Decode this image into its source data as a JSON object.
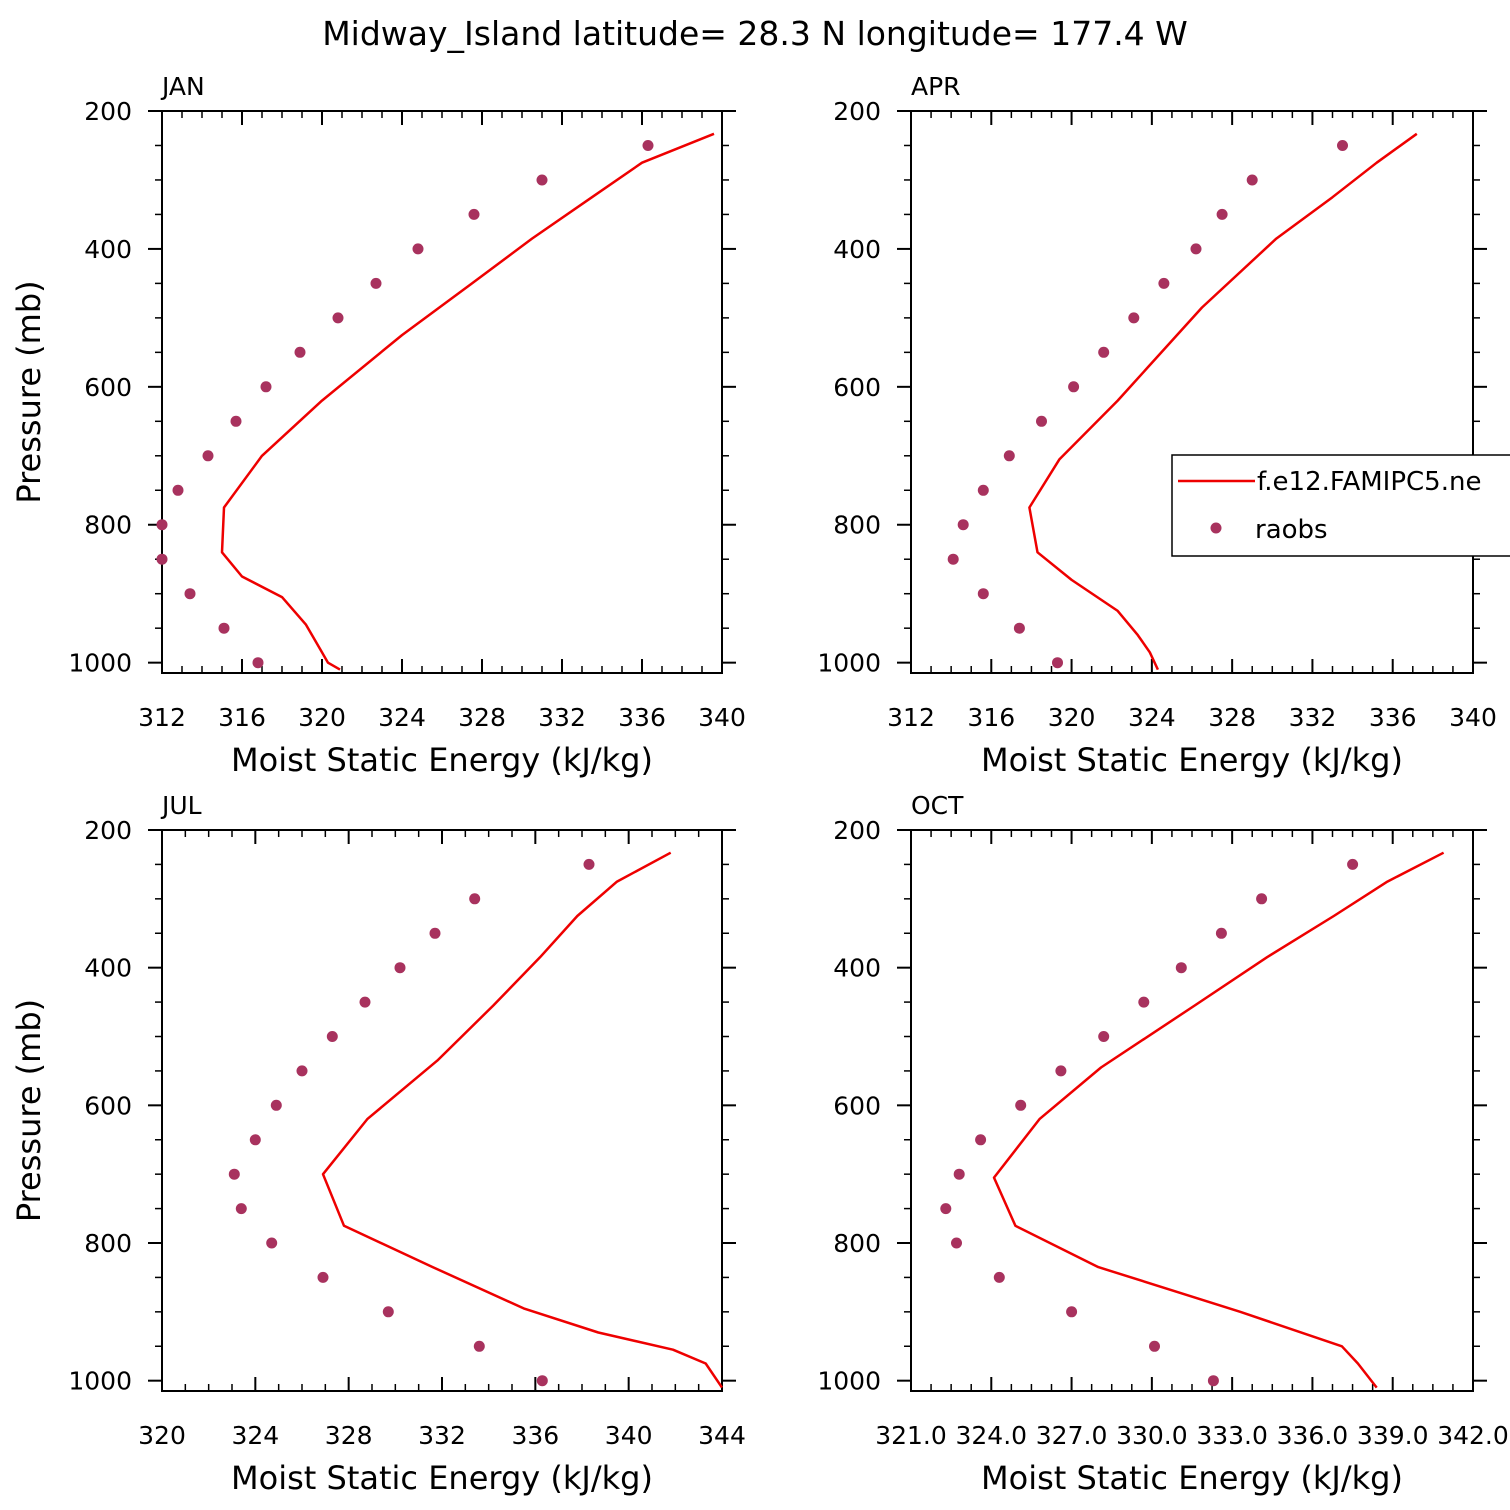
{
  "title": "Midway_Island  latitude= 28.3 N longitude= 177.4 W",
  "colors": {
    "model_line": "#ee0000",
    "obs_marker": "#a8325e",
    "axis": "#000000"
  },
  "legend": {
    "model_label": "f.e12.FAMIPC5.ne",
    "obs_label": "raobs",
    "placement": "right-middle of APR panel (clipped at figure edge)"
  },
  "chart_data": [
    {
      "type": "line",
      "panel": "JAN",
      "title": "JAN",
      "xlabel": "Moist Static Energy (kJ/kg)",
      "ylabel": "Pressure (mb)",
      "xlim": [
        312,
        340
      ],
      "ylim": [
        1015,
        200
      ],
      "x_ticks": [
        "312",
        "316",
        "320",
        "324",
        "328",
        "332",
        "336",
        "340"
      ],
      "y_ticks": [
        "200",
        "400",
        "600",
        "800",
        "1000"
      ],
      "series": [
        {
          "name": "f.e12.FAMIPC5.ne",
          "kind": "line",
          "x": [
            339.6,
            336,
            333.5,
            330.5,
            327.5,
            324,
            320,
            317,
            315.1,
            315,
            316,
            318,
            319.2,
            319.9,
            320.3,
            320.9
          ],
          "y": [
            233,
            275,
            325,
            385,
            450,
            525,
            620,
            700,
            775,
            840,
            875,
            905,
            945,
            980,
            1000,
            1010
          ]
        },
        {
          "name": "raobs",
          "kind": "scatter",
          "x": [
            336.3,
            331,
            327.6,
            324.8,
            322.7,
            320.8,
            318.9,
            317.2,
            315.7,
            314.3,
            312.8,
            312,
            312,
            313.4,
            315.1,
            316.8
          ],
          "y": [
            250,
            300,
            350,
            400,
            450,
            500,
            550,
            600,
            650,
            700,
            750,
            800,
            850,
            900,
            950,
            1000
          ]
        }
      ]
    },
    {
      "type": "line",
      "panel": "APR",
      "title": "APR",
      "xlabel": "Moist Static Energy (kJ/kg)",
      "ylabel": "",
      "xlim": [
        312,
        340
      ],
      "ylim": [
        1015,
        200
      ],
      "x_ticks": [
        "312",
        "316",
        "320",
        "324",
        "328",
        "332",
        "336",
        "340"
      ],
      "y_ticks": [
        "200",
        "400",
        "600",
        "800",
        "1000"
      ],
      "series": [
        {
          "name": "f.e12.FAMIPC5.ne",
          "kind": "line",
          "x": [
            337.2,
            335.2,
            333,
            330.2,
            326.5,
            322.3,
            319.4,
            317.9,
            318.3,
            320,
            322.3,
            323.3,
            323.9,
            324.3
          ],
          "y": [
            233,
            275,
            325,
            385,
            485,
            620,
            705,
            775,
            840,
            880,
            925,
            960,
            985,
            1010
          ]
        },
        {
          "name": "raobs",
          "kind": "scatter",
          "x": [
            333.5,
            329,
            327.5,
            326.2,
            324.6,
            323.1,
            321.6,
            320.1,
            318.5,
            316.9,
            315.6,
            314.6,
            314.1,
            315.6,
            317.4,
            319.3
          ],
          "y": [
            250,
            300,
            350,
            400,
            450,
            500,
            550,
            600,
            650,
            700,
            750,
            800,
            850,
            900,
            950,
            1000
          ]
        }
      ]
    },
    {
      "type": "line",
      "panel": "JUL",
      "title": "JUL",
      "xlabel": "Moist Static Energy (kJ/kg)",
      "ylabel": "Pressure (mb)",
      "xlim": [
        320,
        344
      ],
      "ylim": [
        1015,
        200
      ],
      "x_ticks": [
        "320",
        "324",
        "328",
        "332",
        "336",
        "340",
        "344"
      ],
      "y_ticks": [
        "200",
        "400",
        "600",
        "800",
        "1000"
      ],
      "series": [
        {
          "name": "f.e12.FAMIPC5.ne",
          "kind": "line",
          "x": [
            341.8,
            339.5,
            337.8,
            336.2,
            334.2,
            331.8,
            328.8,
            326.9,
            327.8,
            331.6,
            335.5,
            338.7,
            341.9,
            343.3,
            344
          ],
          "y": [
            233,
            275,
            325,
            385,
            455,
            535,
            620,
            700,
            775,
            835,
            895,
            930,
            955,
            975,
            1010
          ]
        },
        {
          "name": "raobs",
          "kind": "scatter",
          "x": [
            338.3,
            333.4,
            331.7,
            330.2,
            328.7,
            327.3,
            326,
            324.9,
            324,
            323.1,
            323.4,
            324.7,
            326.9,
            329.7,
            333.6,
            336.3
          ],
          "y": [
            250,
            300,
            350,
            400,
            450,
            500,
            550,
            600,
            650,
            700,
            750,
            800,
            850,
            900,
            950,
            1000
          ]
        }
      ]
    },
    {
      "type": "line",
      "panel": "OCT",
      "title": "OCT",
      "xlabel": "Moist Static Energy (kJ/kg)",
      "ylabel": "",
      "xlim": [
        321,
        342
      ],
      "ylim": [
        1015,
        200
      ],
      "x_ticks": [
        "321.0",
        "324.0",
        "327.0",
        "330.0",
        "333.0",
        "336.0",
        "339.0",
        "342.0"
      ],
      "y_ticks": [
        "200",
        "400",
        "600",
        "800",
        "1000"
      ],
      "series": [
        {
          "name": "f.e12.FAMIPC5.ne",
          "kind": "line",
          "x": [
            340.9,
            338.8,
            336.8,
            334.3,
            331.6,
            328.1,
            325.8,
            324.1,
            324.9,
            328,
            333.3,
            337.1,
            337.7,
            338.4
          ],
          "y": [
            233,
            275,
            325,
            385,
            455,
            545,
            620,
            705,
            775,
            835,
            900,
            950,
            975,
            1010
          ]
        },
        {
          "name": "raobs",
          "kind": "scatter",
          "x": [
            337.5,
            334.1,
            332.6,
            331.1,
            329.7,
            328.2,
            326.6,
            325.1,
            323.6,
            322.8,
            322.3,
            322.7,
            324.3,
            327,
            330.1,
            332.3
          ],
          "y": [
            250,
            300,
            350,
            400,
            450,
            500,
            550,
            600,
            650,
            700,
            750,
            800,
            850,
            900,
            950,
            1000
          ]
        }
      ]
    }
  ]
}
